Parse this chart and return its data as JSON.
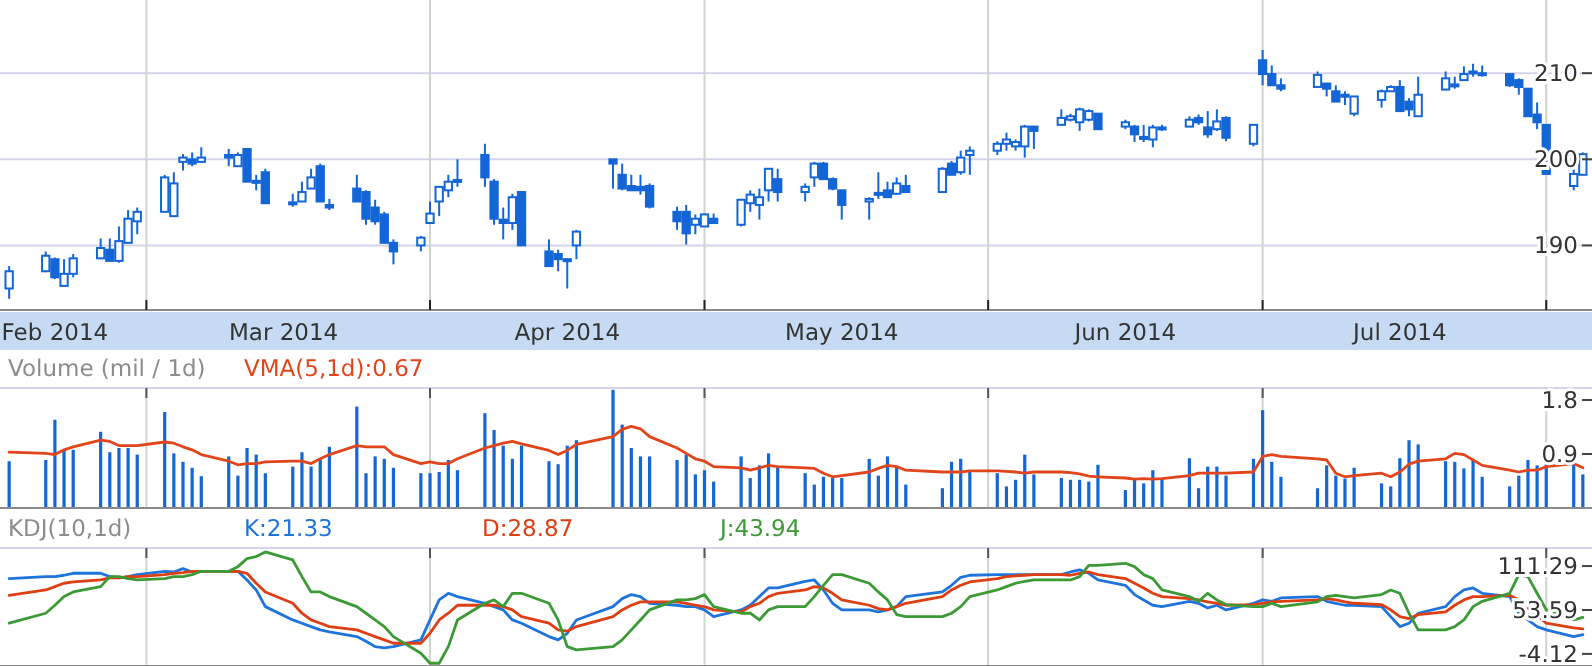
{
  "chart_data": [
    {
      "type": "candlestick",
      "color": "#1466d6",
      "x": [
        "2014-02-14",
        "2014-02-18",
        "2014-02-19",
        "2014-02-20",
        "2014-02-21",
        "2014-02-24",
        "2014-02-25",
        "2014-02-26",
        "2014-02-27",
        "2014-02-28",
        "2014-03-03",
        "2014-03-04",
        "2014-03-05",
        "2014-03-06",
        "2014-03-07",
        "2014-03-10",
        "2014-03-11",
        "2014-03-12",
        "2014-03-13",
        "2014-03-14",
        "2014-03-17",
        "2014-03-18",
        "2014-03-19",
        "2014-03-20",
        "2014-03-21",
        "2014-03-24",
        "2014-03-25",
        "2014-03-26",
        "2014-03-27",
        "2014-03-28",
        "2014-03-31",
        "2014-04-01",
        "2014-04-02",
        "2014-04-03",
        "2014-04-04",
        "2014-04-07",
        "2014-04-08",
        "2014-04-09",
        "2014-04-10",
        "2014-04-11",
        "2014-04-14",
        "2014-04-15",
        "2014-04-16",
        "2014-04-17",
        "2014-04-21",
        "2014-04-22",
        "2014-04-23",
        "2014-04-24",
        "2014-04-25",
        "2014-04-28",
        "2014-04-29",
        "2014-04-30",
        "2014-05-01",
        "2014-05-02",
        "2014-05-05",
        "2014-05-06",
        "2014-05-07",
        "2014-05-08",
        "2014-05-09",
        "2014-05-12",
        "2014-05-13",
        "2014-05-14",
        "2014-05-15",
        "2014-05-16",
        "2014-05-19",
        "2014-05-20",
        "2014-05-21",
        "2014-05-22",
        "2014-05-23",
        "2014-05-27",
        "2014-05-28",
        "2014-05-29",
        "2014-05-30",
        "2014-06-02",
        "2014-06-03",
        "2014-06-04",
        "2014-06-05",
        "2014-06-06",
        "2014-06-09",
        "2014-06-10",
        "2014-06-11",
        "2014-06-12",
        "2014-06-13",
        "2014-06-16",
        "2014-06-17",
        "2014-06-18",
        "2014-06-19",
        "2014-06-20",
        "2014-06-23",
        "2014-06-24",
        "2014-06-25",
        "2014-06-26",
        "2014-06-27",
        "2014-06-30",
        "2014-07-01",
        "2014-07-02",
        "2014-07-03",
        "2014-07-07",
        "2014-07-08",
        "2014-07-09",
        "2014-07-10",
        "2014-07-11",
        "2014-07-14",
        "2014-07-15",
        "2014-07-16",
        "2014-07-17",
        "2014-07-18",
        "2014-07-21",
        "2014-07-22",
        "2014-07-23",
        "2014-07-24",
        "2014-07-25",
        "2014-07-28",
        "2014-07-29",
        "2014-07-30",
        "2014-07-31",
        "2014-08-01",
        "2014-08-04",
        "2014-08-05"
      ],
      "ohlc": [
        [
          185,
          187.6,
          183.8,
          187
        ],
        [
          187,
          189.3,
          186.9,
          188.8
        ],
        [
          188.4,
          188.6,
          186.1,
          186.3
        ],
        [
          185.3,
          188.4,
          185.3,
          186.7
        ],
        [
          186.7,
          189,
          186.3,
          188.5
        ],
        [
          188.5,
          190.8,
          188.4,
          189.7
        ],
        [
          189.5,
          190.8,
          188.2,
          188.2
        ],
        [
          188.2,
          192.2,
          188,
          190.5
        ],
        [
          190.3,
          194.1,
          190.3,
          193.1
        ],
        [
          192.8,
          194.4,
          191.3,
          193.9
        ],
        [
          193.9,
          198.2,
          193.9,
          197.9
        ],
        [
          193.4,
          198.5,
          193.4,
          197.2
        ],
        [
          199.7,
          200.6,
          198.7,
          200.2
        ],
        [
          200,
          200.8,
          199.2,
          199.5
        ],
        [
          199.7,
          201.4,
          199.7,
          200.2
        ],
        [
          200.5,
          201.2,
          199.2,
          200.2
        ],
        [
          199.2,
          200.8,
          199.2,
          200.5
        ],
        [
          201.2,
          201.2,
          197.4,
          197.4
        ],
        [
          197.5,
          198.2,
          196.4,
          197.4
        ],
        [
          198.5,
          198.9,
          194.9,
          194.9
        ],
        [
          195,
          196,
          194.5,
          194.8
        ],
        [
          195.1,
          197.4,
          195.1,
          196.2
        ],
        [
          196.6,
          198.9,
          196.6,
          197.9
        ],
        [
          199.2,
          199.5,
          195.1,
          195.1
        ],
        [
          194.7,
          195.4,
          194.1,
          194.4
        ],
        [
          196.6,
          198.2,
          195.1,
          195.1
        ],
        [
          196.2,
          196.4,
          192.4,
          193.1
        ],
        [
          194.4,
          195.3,
          192.4,
          192.8
        ],
        [
          193.6,
          193.9,
          190.3,
          190.3
        ],
        [
          190.3,
          190.7,
          187.8,
          189.3
        ],
        [
          190,
          191.1,
          189.3,
          190.9
        ],
        [
          192.6,
          195.1,
          192.6,
          193.7
        ],
        [
          195.1,
          196.8,
          193.4,
          196.8
        ],
        [
          196.4,
          198.2,
          195.6,
          197.4
        ],
        [
          197.5,
          200,
          196.8,
          197.6
        ],
        [
          200.5,
          201.8,
          196.8,
          197.9
        ],
        [
          197.4,
          197.7,
          192.4,
          193.1
        ],
        [
          193,
          194.4,
          190.7,
          192.6
        ],
        [
          192.6,
          196,
          191.8,
          195.6
        ],
        [
          196.2,
          196.2,
          190,
          190
        ],
        [
          189.3,
          190.7,
          187.6,
          187.6
        ],
        [
          189,
          189.5,
          187,
          188.4
        ],
        [
          188.4,
          188.5,
          185,
          188.3
        ],
        [
          190,
          191.8,
          188.4,
          191.6
        ],
        [
          200,
          200,
          196.6,
          199.5
        ],
        [
          198.2,
          199.5,
          196.4,
          196.6
        ],
        [
          196.9,
          198.2,
          196.4,
          196.4
        ],
        [
          196.8,
          198.2,
          195.9,
          196.4
        ],
        [
          196.9,
          197.2,
          194.3,
          194.5
        ],
        [
          193.9,
          194.5,
          191.8,
          192.8
        ],
        [
          193.9,
          194.7,
          190.1,
          191.4
        ],
        [
          192.4,
          193.6,
          191.3,
          193.1
        ],
        [
          192.2,
          193.7,
          192.2,
          193.6
        ],
        [
          193.1,
          193.7,
          192.6,
          192.6
        ],
        [
          192.4,
          195.4,
          192.2,
          195.3
        ],
        [
          194.9,
          196.4,
          193.9,
          195.9
        ],
        [
          194.7,
          196.6,
          193,
          195.6
        ],
        [
          196.4,
          198.9,
          195.1,
          198.9
        ],
        [
          197.7,
          198.9,
          195.1,
          196.2
        ],
        [
          196.2,
          197.2,
          195.1,
          196.8
        ],
        [
          197.9,
          199.7,
          196.8,
          199.5
        ],
        [
          199.5,
          199.7,
          197.7,
          197.7
        ],
        [
          197.7,
          197.9,
          196.4,
          196.6
        ],
        [
          196.4,
          196.4,
          193,
          194.7
        ],
        [
          195.1,
          195.6,
          193,
          195.4
        ],
        [
          196,
          198.5,
          195.4,
          196.1
        ],
        [
          196.4,
          197.4,
          195.6,
          195.6
        ],
        [
          196,
          197.9,
          195.9,
          197.2
        ],
        [
          196.9,
          198.2,
          196.2,
          196.2
        ],
        [
          196.2,
          199.1,
          196.2,
          198.9
        ],
        [
          199.5,
          199.8,
          198.2,
          198.2
        ],
        [
          198.5,
          201,
          198.2,
          200.2
        ],
        [
          200.5,
          201.5,
          198.2,
          201
        ],
        [
          201,
          202.1,
          200.5,
          201.8
        ],
        [
          201.8,
          203.1,
          201,
          202.3
        ],
        [
          201.5,
          202.3,
          201,
          202
        ],
        [
          201.5,
          204,
          200.2,
          203.8
        ],
        [
          203.8,
          203.8,
          201.2,
          203.3
        ],
        [
          204,
          205.8,
          204,
          204.8
        ],
        [
          204.6,
          205.3,
          204.4,
          205
        ],
        [
          204.3,
          206,
          203.3,
          205.8
        ],
        [
          204.6,
          205.8,
          204.4,
          205.6
        ],
        [
          205.3,
          205.3,
          203.5,
          203.5
        ],
        [
          203.8,
          204.6,
          203.5,
          204.3
        ],
        [
          203.8,
          204,
          202,
          202.9
        ],
        [
          202.5,
          204,
          202,
          202.6
        ],
        [
          202.3,
          204,
          201.4,
          203.7
        ],
        [
          203.5,
          204,
          203.3,
          203.7
        ],
        [
          203.8,
          205,
          203.8,
          204.6
        ],
        [
          204.8,
          205.2,
          204,
          204.3
        ],
        [
          203.7,
          205.6,
          202.5,
          202.9
        ],
        [
          203.5,
          205.8,
          203.3,
          204.4
        ],
        [
          204.8,
          205,
          202.1,
          202.5
        ],
        [
          201.8,
          204,
          201.5,
          204
        ],
        [
          211.5,
          212.7,
          208.6,
          209.9
        ],
        [
          209.9,
          210.9,
          208.6,
          208.6
        ],
        [
          208.6,
          209.4,
          207.9,
          208.2
        ],
        [
          208.4,
          210.2,
          208.4,
          209.8
        ],
        [
          208.8,
          208.8,
          207.3,
          208.2
        ],
        [
          207.9,
          208.6,
          206.7,
          206.7
        ],
        [
          207.5,
          207.9,
          206.3,
          207.4
        ],
        [
          205.3,
          207.3,
          205,
          207.3
        ],
        [
          206.9,
          208.1,
          206,
          207.9
        ],
        [
          207.9,
          208.6,
          207.9,
          208.4
        ],
        [
          208.4,
          209.2,
          205.6,
          205.6
        ],
        [
          206.7,
          207.1,
          205,
          205.8
        ],
        [
          205,
          209.6,
          205,
          207.5
        ],
        [
          208.1,
          210.2,
          208.1,
          209.4
        ],
        [
          208.6,
          209.6,
          208.2,
          208.7
        ],
        [
          209.2,
          210.8,
          209.2,
          209.9
        ],
        [
          210.1,
          211.1,
          209.6,
          210.2
        ],
        [
          209.9,
          210.9,
          209.6,
          210
        ],
        [
          209.9,
          209.9,
          208.4,
          208.6
        ],
        [
          209.2,
          209.4,
          207.5,
          208.4
        ],
        [
          208.2,
          208.2,
          205,
          205
        ],
        [
          205.2,
          206.6,
          203.5,
          204.3
        ],
        [
          204,
          204,
          198.3,
          198.3
        ],
        [
          196.9,
          199.5,
          196.4,
          198.3
        ],
        [
          198.2,
          200.8,
          198.2,
          200.6
        ]
      ],
      "xlim": [
        "2014-02-13",
        "2014-08-06"
      ],
      "xticks": [
        {
          "value": "2014-02-19",
          "label": "Feb 2014"
        },
        {
          "value": "2014-03-01",
          "label": null
        },
        {
          "value": "2014-03-16",
          "label": "Mar 2014"
        },
        {
          "value": "2014-04-01",
          "label": null
        },
        {
          "value": "2014-04-16",
          "label": "Apr 2014"
        },
        {
          "value": "2014-05-01",
          "label": null
        },
        {
          "value": "2014-05-16",
          "label": "May 2014"
        },
        {
          "value": "2014-06-01",
          "label": null
        },
        {
          "value": "2014-06-16",
          "label": "Jun 2014"
        },
        {
          "value": "2014-07-01",
          "label": null
        },
        {
          "value": "2014-07-16",
          "label": "Jul 2014"
        },
        {
          "value": "2014-08-01",
          "label": null
        }
      ],
      "ylim": [
        182.5,
        218.5
      ],
      "yticks": [
        190,
        200,
        210
      ],
      "grid": true
    },
    {
      "type": "bar",
      "title": "Volume (mil / 1d)",
      "x": [
        "2014-02-14",
        "2014-02-18",
        "2014-02-19",
        "2014-02-20",
        "2014-02-21",
        "2014-02-24",
        "2014-02-25",
        "2014-02-26",
        "2014-02-27",
        "2014-02-28",
        "2014-03-03",
        "2014-03-04",
        "2014-03-05",
        "2014-03-06",
        "2014-03-07",
        "2014-03-10",
        "2014-03-11",
        "2014-03-12",
        "2014-03-13",
        "2014-03-14",
        "2014-03-17",
        "2014-03-18",
        "2014-03-19",
        "2014-03-20",
        "2014-03-21",
        "2014-03-24",
        "2014-03-25",
        "2014-03-26",
        "2014-03-27",
        "2014-03-28",
        "2014-03-31",
        "2014-04-01",
        "2014-04-02",
        "2014-04-03",
        "2014-04-04",
        "2014-04-07",
        "2014-04-08",
        "2014-04-09",
        "2014-04-10",
        "2014-04-11",
        "2014-04-14",
        "2014-04-15",
        "2014-04-16",
        "2014-04-17",
        "2014-04-21",
        "2014-04-22",
        "2014-04-23",
        "2014-04-24",
        "2014-04-25",
        "2014-04-28",
        "2014-04-29",
        "2014-04-30",
        "2014-05-01",
        "2014-05-02",
        "2014-05-05",
        "2014-05-06",
        "2014-05-07",
        "2014-05-08",
        "2014-05-09",
        "2014-05-12",
        "2014-05-13",
        "2014-05-14",
        "2014-05-15",
        "2014-05-16",
        "2014-05-19",
        "2014-05-20",
        "2014-05-21",
        "2014-05-22",
        "2014-05-23",
        "2014-05-27",
        "2014-05-28",
        "2014-05-29",
        "2014-05-30",
        "2014-06-02",
        "2014-06-03",
        "2014-06-04",
        "2014-06-05",
        "2014-06-06",
        "2014-06-09",
        "2014-06-10",
        "2014-06-11",
        "2014-06-12",
        "2014-06-13",
        "2014-06-16",
        "2014-06-17",
        "2014-06-18",
        "2014-06-19",
        "2014-06-20",
        "2014-06-23",
        "2014-06-24",
        "2014-06-25",
        "2014-06-26",
        "2014-06-27",
        "2014-06-30",
        "2014-07-01",
        "2014-07-02",
        "2014-07-03",
        "2014-07-07",
        "2014-07-08",
        "2014-07-09",
        "2014-07-10",
        "2014-07-11",
        "2014-07-14",
        "2014-07-15",
        "2014-07-16",
        "2014-07-17",
        "2014-07-18",
        "2014-07-21",
        "2014-07-22",
        "2014-07-23",
        "2014-07-24",
        "2014-07-25",
        "2014-07-28",
        "2014-07-29",
        "2014-07-30",
        "2014-07-31",
        "2014-08-01",
        "2014-08-04",
        "2014-08-05"
      ],
      "series": [
        {
          "color": "#1466d6",
          "values": [
            0.78,
            0.8,
            1.47,
            0.97,
            0.97,
            1.27,
            0.93,
            1.0,
            1.0,
            0.89,
            1.6,
            0.91,
            0.77,
            0.67,
            0.53,
            0.86,
            0.54,
            1.0,
            0.89,
            0.58,
            0.69,
            0.93,
            0.69,
            0.82,
            1.02,
            1.69,
            0.58,
            0.86,
            0.82,
            0.67,
            0.58,
            0.58,
            0.6,
            0.8,
            0.63,
            1.58,
            1.3,
            1.04,
            0.82,
            1.04,
            0.78,
            0.73,
            1.04,
            1.13,
            1.97,
            1.39,
            1.0,
            0.86,
            0.86,
            0.8,
            0.89,
            0.56,
            0.63,
            0.44,
            0.86,
            0.5,
            0.71,
            0.91,
            0.67,
            0.58,
            0.39,
            0.52,
            0.5,
            0.5,
            0.82,
            0.54,
            0.86,
            0.69,
            0.39,
            0.33,
            0.77,
            0.82,
            0.6,
            0.58,
            0.36,
            0.47,
            0.89,
            0.56,
            0.5,
            0.47,
            0.47,
            0.44,
            0.72,
            0.3,
            0.49,
            0.41,
            0.63,
            0.49,
            0.83,
            0.33,
            0.69,
            0.69,
            0.54,
            0.82,
            1.63,
            0.77,
            0.52,
            0.33,
            0.71,
            0.54,
            0.49,
            0.67,
            0.41,
            0.36,
            0.83,
            1.13,
            1.06,
            0.78,
            0.77,
            0.66,
            0.82,
            0.52,
            0.36,
            0.54,
            0.8,
            0.71,
            0.74,
            0.74,
            0.56
          ]
        },
        {
          "type": "line",
          "name": "VMA(5,1d):0.67",
          "color": "#e0451b",
          "values": [
            0.93,
            0.91,
            0.89,
            0.97,
            1.02,
            1.13,
            1.11,
            1.04,
            1.04,
            1.04,
            1.1,
            1.08,
            1.02,
            0.97,
            0.89,
            0.78,
            0.72,
            0.74,
            0.74,
            0.77,
            0.78,
            0.78,
            0.74,
            0.82,
            0.89,
            1.04,
            1.02,
            1.02,
            1.02,
            0.89,
            0.74,
            0.77,
            0.74,
            0.74,
            0.82,
            1.0,
            1.04,
            1.08,
            1.11,
            1.07,
            0.96,
            0.89,
            0.96,
            1.06,
            1.19,
            1.31,
            1.36,
            1.32,
            1.19,
            1.0,
            0.91,
            0.82,
            0.78,
            0.69,
            0.67,
            0.63,
            0.67,
            0.71,
            0.69,
            0.67,
            0.66,
            0.58,
            0.52,
            0.54,
            0.6,
            0.66,
            0.71,
            0.69,
            0.63,
            0.6,
            0.6,
            0.6,
            0.62,
            0.62,
            0.61,
            0.6,
            0.58,
            0.6,
            0.6,
            0.59,
            0.57,
            0.53,
            0.52,
            0.5,
            0.48,
            0.49,
            0.48,
            0.49,
            0.54,
            0.58,
            0.58,
            0.58,
            0.58,
            0.6,
            0.86,
            0.89,
            0.86,
            0.82,
            0.8,
            0.58,
            0.52,
            0.54,
            0.58,
            0.52,
            0.6,
            0.73,
            0.78,
            0.82,
            0.91,
            0.89,
            0.8,
            0.71,
            0.63,
            0.6,
            0.63,
            0.63,
            0.69,
            0.74,
            0.67
          ]
        }
      ],
      "xlim": [
        "2014-02-13",
        "2014-08-06"
      ],
      "xticks": [
        {
          "value": "2014-03-01",
          "label": null
        },
        {
          "value": "2014-04-01",
          "label": null
        },
        {
          "value": "2014-05-01",
          "label": null
        },
        {
          "value": "2014-06-01",
          "label": null
        },
        {
          "value": "2014-07-01",
          "label": null
        },
        {
          "value": "2014-08-01",
          "label": null
        }
      ],
      "ylim": [
        0,
        2
      ],
      "yticks": [
        0.9,
        1.8
      ],
      "grid": "x",
      "legend": "top left",
      "tick_labels": "y"
    },
    {
      "type": "line",
      "title": "KDJ(10,1d)",
      "x": [
        "2014-02-14",
        "2014-02-18",
        "2014-02-19",
        "2014-02-20",
        "2014-02-21",
        "2014-02-24",
        "2014-02-25",
        "2014-02-26",
        "2014-02-27",
        "2014-02-28",
        "2014-03-03",
        "2014-03-04",
        "2014-03-05",
        "2014-03-06",
        "2014-03-07",
        "2014-03-10",
        "2014-03-11",
        "2014-03-12",
        "2014-03-13",
        "2014-03-14",
        "2014-03-17",
        "2014-03-18",
        "2014-03-19",
        "2014-03-20",
        "2014-03-21",
        "2014-03-24",
        "2014-03-25",
        "2014-03-26",
        "2014-03-27",
        "2014-03-28",
        "2014-03-31",
        "2014-04-01",
        "2014-04-02",
        "2014-04-03",
        "2014-04-04",
        "2014-04-07",
        "2014-04-08",
        "2014-04-09",
        "2014-04-10",
        "2014-04-11",
        "2014-04-14",
        "2014-04-15",
        "2014-04-16",
        "2014-04-17",
        "2014-04-21",
        "2014-04-22",
        "2014-04-23",
        "2014-04-24",
        "2014-04-25",
        "2014-04-28",
        "2014-04-29",
        "2014-04-30",
        "2014-05-01",
        "2014-05-02",
        "2014-05-05",
        "2014-05-06",
        "2014-05-07",
        "2014-05-08",
        "2014-05-09",
        "2014-05-12",
        "2014-05-13",
        "2014-05-14",
        "2014-05-15",
        "2014-05-16",
        "2014-05-19",
        "2014-05-20",
        "2014-05-21",
        "2014-05-22",
        "2014-05-23",
        "2014-05-27",
        "2014-05-28",
        "2014-05-29",
        "2014-05-30",
        "2014-06-02",
        "2014-06-03",
        "2014-06-04",
        "2014-06-05",
        "2014-06-06",
        "2014-06-09",
        "2014-06-10",
        "2014-06-11",
        "2014-06-12",
        "2014-06-13",
        "2014-06-16",
        "2014-06-17",
        "2014-06-18",
        "2014-06-19",
        "2014-06-20",
        "2014-06-23",
        "2014-06-24",
        "2014-06-25",
        "2014-06-26",
        "2014-06-27",
        "2014-06-30",
        "2014-07-01",
        "2014-07-02",
        "2014-07-03",
        "2014-07-07",
        "2014-07-08",
        "2014-07-09",
        "2014-07-10",
        "2014-07-11",
        "2014-07-14",
        "2014-07-15",
        "2014-07-16",
        "2014-07-17",
        "2014-07-18",
        "2014-07-21",
        "2014-07-22",
        "2014-07-23",
        "2014-07-24",
        "2014-07-25",
        "2014-07-28",
        "2014-07-29",
        "2014-07-30",
        "2014-07-31",
        "2014-08-01",
        "2014-08-04",
        "2014-08-05"
      ],
      "series": [
        {
          "name": "K:21.33",
          "color": "#1f74dc",
          "values": [
            94.8,
            97.4,
            97.4,
            99.2,
            101.8,
            101.8,
            97.4,
            95.7,
            97.4,
            100,
            104.4,
            103.5,
            107.9,
            103.5,
            104.4,
            104.4,
            104.4,
            93,
            79.9,
            58,
            40.5,
            36.2,
            31.8,
            27.4,
            24.8,
            18.6,
            12.5,
            5.5,
            3.8,
            5.5,
            14.3,
            40.5,
            66.8,
            75.5,
            71.2,
            62.4,
            58,
            53.7,
            40.5,
            36.2,
            18.6,
            14.3,
            23,
            40.5,
            58,
            68.5,
            73.8,
            71.2,
            62.4,
            59.8,
            58,
            58,
            53.7,
            44.9,
            53.7,
            59.8,
            71.2,
            82.5,
            82.5,
            91.3,
            93,
            79.9,
            62.4,
            53.7,
            53.7,
            51,
            53.7,
            58,
            71.2,
            77.3,
            86,
            96.5,
            99.2,
            100,
            100,
            100,
            100,
            100,
            100,
            103.5,
            106.2,
            101.8,
            93,
            86,
            73.8,
            66.8,
            59.8,
            58,
            65,
            62.4,
            56.3,
            59.8,
            53.7,
            62.4,
            66.8,
            65,
            69.4,
            71.2,
            65,
            62.4,
            59.8,
            59.8,
            58,
            44.9,
            31.8,
            36.2,
            49.3,
            58,
            71.2,
            79.9,
            82.5,
            75.5,
            71.2,
            49.3,
            40.5,
            31.8,
            27.4,
            18.6,
            21.3
          ]
        },
        {
          "name": "D:28.87",
          "color": "#dd3f12",
          "values": [
            72.9,
            79.9,
            84.3,
            88.7,
            90.4,
            93,
            95.7,
            95.7,
            97.4,
            97.4,
            100,
            101.8,
            102.7,
            104.4,
            104.4,
            104.4,
            104.4,
            101.8,
            88.7,
            77.3,
            62.4,
            49.3,
            40.5,
            36.2,
            31.8,
            27.4,
            23,
            18.6,
            14.3,
            9.9,
            9.9,
            23,
            40.5,
            49.3,
            59.8,
            59.8,
            59.8,
            58,
            53.7,
            44.9,
            36.2,
            27.4,
            25.7,
            31.8,
            44.9,
            53.7,
            59.8,
            64.2,
            64.2,
            64.2,
            62.4,
            59.8,
            58,
            53.7,
            51,
            58,
            62.4,
            71.2,
            75.5,
            79.9,
            84.3,
            82.5,
            75.5,
            66.8,
            59.8,
            55.4,
            53.7,
            58,
            62.4,
            71.2,
            79.9,
            86,
            90.4,
            94.8,
            97.4,
            98.3,
            99.2,
            100,
            100,
            99.2,
            101.8,
            103.5,
            100,
            94.8,
            88.7,
            82.5,
            75.5,
            71.2,
            68.5,
            66.8,
            64.2,
            62.4,
            59.8,
            60.7,
            62.4,
            64.2,
            65,
            66.8,
            68.5,
            66.8,
            64.2,
            62.4,
            60.7,
            53.7,
            44.9,
            42.3,
            47.5,
            51,
            59.8,
            66.8,
            71.2,
            71.2,
            72.9,
            66.8,
            56.3,
            46.7,
            36.2,
            30,
            28.9
          ]
        },
        {
          "name": "J:43.94",
          "color": "#3c9a36",
          "values": [
            36.2,
            49.3,
            59.8,
            71.2,
            77.3,
            84.3,
            97.4,
            97.4,
            94.8,
            93,
            94.8,
            97.4,
            97.4,
            100,
            104.4,
            104.4,
            110.5,
            121,
            123.7,
            129.8,
            119.3,
            97.4,
            77.3,
            77.3,
            71.2,
            58,
            49.3,
            40.5,
            31.8,
            18.6,
            -3.2,
            -16.4,
            -16.4,
            5.5,
            40.5,
            62.4,
            66.8,
            58,
            75.5,
            75.5,
            62.4,
            40.5,
            5.5,
            1.1,
            5.5,
            14.3,
            27.4,
            40.5,
            53.7,
            66.8,
            66.8,
            68.5,
            73.8,
            58,
            49.3,
            49.3,
            40.5,
            53.7,
            58,
            58,
            71.2,
            86,
            100,
            100,
            88.7,
            77.3,
            66.8,
            47.5,
            44.9,
            44.9,
            49.3,
            58,
            71.2,
            79.9,
            84.3,
            88.7,
            91.3,
            93,
            93,
            93,
            97.4,
            112.3,
            112.3,
            114.9,
            110.5,
            100,
            94.8,
            79.9,
            71.2,
            65,
            75.5,
            66.8,
            60.7,
            58,
            58,
            62.4,
            58,
            64.2,
            71.2,
            72.9,
            71.2,
            69.4,
            73.8,
            79.9,
            75.5,
            49.3,
            27.4,
            27.4,
            31.8,
            40.5,
            58,
            65,
            75.5,
            100,
            97.4,
            75.5,
            53.7,
            40.5,
            43.9
          ]
        }
      ],
      "xlim": [
        "2014-02-13",
        "2014-08-06"
      ],
      "xticks": [
        {
          "value": "2014-03-01",
          "label": null
        },
        {
          "value": "2014-04-01",
          "label": null
        },
        {
          "value": "2014-05-01",
          "label": null
        },
        {
          "value": "2014-06-01",
          "label": null
        },
        {
          "value": "2014-07-01",
          "label": null
        },
        {
          "value": "2014-08-01",
          "label": null
        }
      ],
      "ylim": [
        -20,
        135
      ],
      "yticks": [
        -4.12,
        53.59,
        111.29
      ],
      "grid": "x",
      "legend": "top left",
      "tick_labels": "y"
    }
  ]
}
